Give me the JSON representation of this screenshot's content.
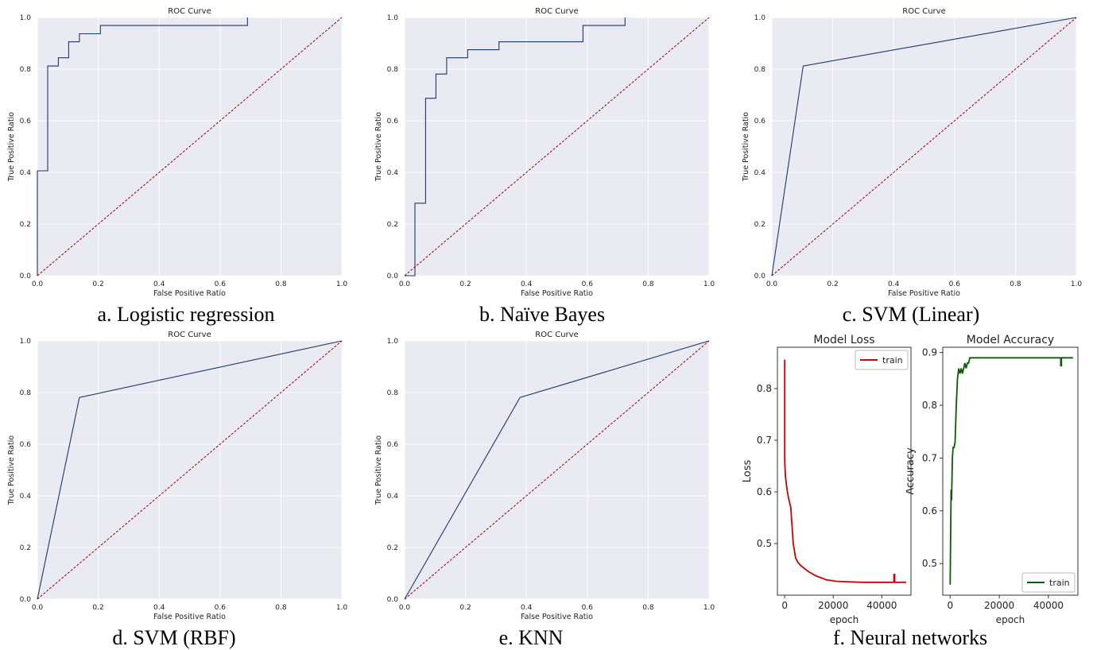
{
  "chart_data": [
    {
      "type": "line",
      "title": "ROC Curve",
      "caption": "a. Logistic regression",
      "xlabel": "False Positive Ratio",
      "ylabel": "True Positive Ratio",
      "xlim": [
        0,
        1
      ],
      "ylim": [
        0,
        1
      ],
      "xticks": [
        "0.0",
        "0.2",
        "0.4",
        "0.6",
        "0.8",
        "1.0"
      ],
      "yticks": [
        "0.0",
        "0.2",
        "0.4",
        "0.6",
        "0.8",
        "1.0"
      ],
      "grid": true,
      "colors": {
        "roc": "#1f3864",
        "chance": "#8b0000",
        "background": "#eaeaf2"
      },
      "series": [
        {
          "x": [
            0,
            0,
            0.034,
            0.034,
            0.069,
            0.069,
            0.103,
            0.103,
            0.138,
            0.138,
            0.207,
            0.207,
            0.69,
            0.69
          ],
          "y": [
            0,
            0.406,
            0.406,
            0.812,
            0.812,
            0.844,
            0.844,
            0.906,
            0.906,
            0.937,
            0.937,
            0.969,
            0.969,
            1.0
          ]
        },
        {
          "style": "dashed",
          "x": [
            0,
            1
          ],
          "y": [
            0,
            1
          ]
        }
      ]
    },
    {
      "type": "line",
      "title": "ROC Curve",
      "caption": "b. Naïve Bayes",
      "xlabel": "False Positive Ratio",
      "ylabel": "True Positive Ratio",
      "xlim": [
        0,
        1
      ],
      "ylim": [
        0,
        1
      ],
      "xticks": [
        "0.0",
        "0.2",
        "0.4",
        "0.6",
        "0.8",
        "1.0"
      ],
      "yticks": [
        "0.0",
        "0.2",
        "0.4",
        "0.6",
        "0.8",
        "1.0"
      ],
      "grid": true,
      "colors": {
        "roc": "#1f3864",
        "chance": "#8b0000",
        "background": "#eaeaf2"
      },
      "series": [
        {
          "x": [
            0,
            0.034,
            0.034,
            0.069,
            0.069,
            0.103,
            0.103,
            0.138,
            0.138,
            0.207,
            0.207,
            0.31,
            0.31,
            0.586,
            0.586,
            0.724,
            0.724
          ],
          "y": [
            0,
            0,
            0.281,
            0.281,
            0.687,
            0.687,
            0.781,
            0.781,
            0.844,
            0.844,
            0.875,
            0.875,
            0.906,
            0.906,
            0.969,
            0.969,
            1.0
          ]
        },
        {
          "style": "dashed",
          "x": [
            0,
            1
          ],
          "y": [
            0,
            1
          ]
        }
      ]
    },
    {
      "type": "line",
      "title": "ROC Curve",
      "caption": "c. SVM (Linear)",
      "xlabel": "False Positive Ratio",
      "ylabel": "True Positive Ratio",
      "xlim": [
        0,
        1
      ],
      "ylim": [
        0,
        1
      ],
      "xticks": [
        "0.0",
        "0.2",
        "0.4",
        "0.6",
        "0.8",
        "1.0"
      ],
      "yticks": [
        "0.0",
        "0.2",
        "0.4",
        "0.6",
        "0.8",
        "1.0"
      ],
      "grid": true,
      "colors": {
        "roc": "#1f3864",
        "chance": "#8b0000",
        "background": "#eaeaf2"
      },
      "series": [
        {
          "x": [
            0,
            0.103,
            1.0
          ],
          "y": [
            0,
            0.812,
            1.0
          ]
        },
        {
          "style": "dashed",
          "x": [
            0,
            1
          ],
          "y": [
            0,
            1
          ]
        }
      ]
    },
    {
      "type": "line",
      "title": "ROC Curve",
      "caption": "d. SVM (RBF)",
      "xlabel": "False Positive Ratio",
      "ylabel": "True Positive Ratio",
      "xlim": [
        0,
        1
      ],
      "ylim": [
        0,
        1
      ],
      "xticks": [
        "0.0",
        "0.2",
        "0.4",
        "0.6",
        "0.8",
        "1.0"
      ],
      "yticks": [
        "0.0",
        "0.2",
        "0.4",
        "0.6",
        "0.8",
        "1.0"
      ],
      "grid": true,
      "colors": {
        "roc": "#1f3864",
        "chance": "#8b0000",
        "background": "#eaeaf2"
      },
      "series": [
        {
          "x": [
            0,
            0.138,
            1.0
          ],
          "y": [
            0,
            0.781,
            1.0
          ]
        },
        {
          "style": "dashed",
          "x": [
            0,
            1
          ],
          "y": [
            0,
            1
          ]
        }
      ]
    },
    {
      "type": "line",
      "title": "ROC Curve",
      "caption": "e. KNN",
      "xlabel": "False Positive Ratio",
      "ylabel": "True Positive Ratio",
      "xlim": [
        0,
        1
      ],
      "ylim": [
        0,
        1
      ],
      "xticks": [
        "0.0",
        "0.2",
        "0.4",
        "0.6",
        "0.8",
        "1.0"
      ],
      "yticks": [
        "0.0",
        "0.2",
        "0.4",
        "0.6",
        "0.8",
        "1.0"
      ],
      "grid": true,
      "colors": {
        "roc": "#1f3864",
        "chance": "#8b0000",
        "background": "#eaeaf2"
      },
      "series": [
        {
          "x": [
            0,
            0.379,
            1.0
          ],
          "y": [
            0,
            0.781,
            1.0
          ]
        },
        {
          "style": "dashed",
          "x": [
            0,
            1
          ],
          "y": [
            0,
            1
          ]
        }
      ]
    },
    {
      "type": "line",
      "title": "Model Loss",
      "group_caption": "f. Neural networks",
      "xlabel": "epoch",
      "ylabel": "Loss",
      "xlim": [
        -3000,
        52000
      ],
      "ylim": [
        0.4,
        0.88
      ],
      "xticks": [
        0,
        20000,
        40000
      ],
      "yticks": [
        0.5,
        0.6,
        0.7,
        0.8
      ],
      "grid": false,
      "legend": "top-right",
      "colors": {
        "line": "#cc0000"
      },
      "series": [
        {
          "name": "train",
          "x": [
            0,
            0,
            300,
            800,
            1500,
            2500,
            3500,
            4500,
            5500,
            6500,
            8000,
            10000,
            13000,
            17000,
            21000,
            26000,
            32000,
            38000,
            44000,
            45000,
            45000,
            45300,
            45300,
            50000
          ],
          "y": [
            0.856,
            0.66,
            0.63,
            0.61,
            0.59,
            0.57,
            0.5,
            0.472,
            0.463,
            0.458,
            0.452,
            0.445,
            0.437,
            0.43,
            0.427,
            0.426,
            0.425,
            0.425,
            0.425,
            0.425,
            0.44,
            0.44,
            0.425,
            0.425
          ]
        }
      ]
    },
    {
      "type": "line",
      "title": "Model Accuracy",
      "xlabel": "epoch",
      "ylabel": "Accuracy",
      "xlim": [
        -3000,
        52000
      ],
      "ylim": [
        0.44,
        0.91
      ],
      "xticks": [
        0,
        20000,
        40000
      ],
      "yticks": [
        0.5,
        0.6,
        0.7,
        0.8,
        0.9
      ],
      "grid": false,
      "legend": "bottom-right",
      "colors": {
        "line": "#0a5d00"
      },
      "series": [
        {
          "name": "train",
          "x": [
            0,
            200,
            400,
            600,
            900,
            1200,
            1600,
            2000,
            2500,
            3000,
            3500,
            4000,
            4500,
            5000,
            5500,
            6000,
            6500,
            7000,
            7500,
            8000,
            9000,
            10000,
            20000,
            30000,
            40000,
            45000,
            45000,
            45300,
            45300,
            50000
          ],
          "y": [
            0.46,
            0.55,
            0.64,
            0.62,
            0.7,
            0.72,
            0.72,
            0.73,
            0.8,
            0.85,
            0.87,
            0.86,
            0.87,
            0.86,
            0.87,
            0.88,
            0.87,
            0.88,
            0.88,
            0.89,
            0.89,
            0.89,
            0.89,
            0.89,
            0.89,
            0.89,
            0.875,
            0.875,
            0.89,
            0.89
          ]
        }
      ]
    }
  ]
}
